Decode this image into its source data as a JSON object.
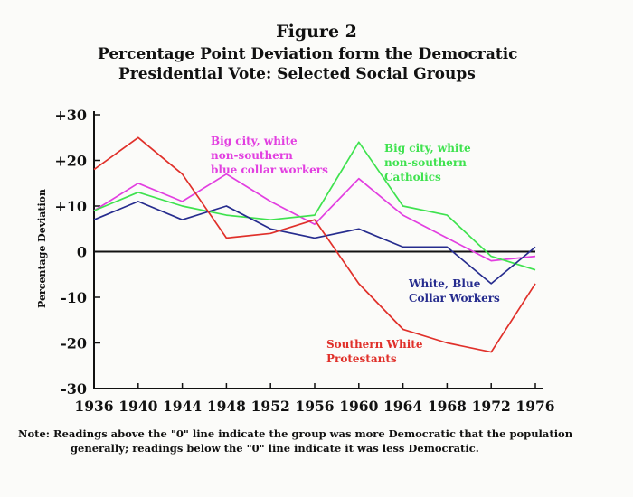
{
  "figure_label": "Figure 2",
  "title_line1": "Percentage Point Deviation form the Democratic",
  "title_line2": "Presidential Vote:  Selected Social Groups",
  "note_line1": "Note: Readings above the \"0\" line indicate the group was more Democratic that the population",
  "note_line2": "generally;  readings below the \"0\" line indicate it was less Democratic.",
  "chart_data": {
    "type": "line",
    "title": "Percentage Point Deviation form the Democratic Presidential Vote:  Selected Social Groups",
    "xlabel": "",
    "ylabel": "Percentage Deviation",
    "x": [
      1936,
      1940,
      1944,
      1948,
      1952,
      1956,
      1960,
      1964,
      1968,
      1972,
      1976
    ],
    "x_tick_labels": [
      "1936",
      "1940",
      "1944",
      "1948",
      "1952",
      "1956",
      "1960",
      "1964",
      "1968",
      "1972",
      "1976"
    ],
    "y_ticks": [
      30,
      20,
      10,
      0,
      -10,
      -20,
      -30
    ],
    "y_tick_labels": [
      "+30",
      "+20",
      "+10",
      "0",
      "-10",
      "-20",
      "-30"
    ],
    "ylim": [
      -30,
      30
    ],
    "grid": false,
    "legend": "inline labels",
    "series": [
      {
        "name": "Big city, white non-southern blue collar workers",
        "label_lines": [
          "Big city, white",
          "non-southern",
          "blue collar workers"
        ],
        "color": "#e23fe0",
        "values": [
          9,
          15,
          11,
          17,
          11,
          6,
          16,
          8,
          3,
          -2,
          -1
        ]
      },
      {
        "name": "Big city, white non-southern Catholics",
        "label_lines": [
          "Big city, white",
          "non-southern",
          "Catholics"
        ],
        "color": "#3fe24f",
        "values": [
          9,
          13,
          10,
          8,
          7,
          8,
          24,
          10,
          8,
          -1,
          -4
        ]
      },
      {
        "name": "White, Blue Collar Workers",
        "label_lines": [
          "White, Blue",
          "Collar Workers"
        ],
        "color": "#262c8e",
        "values": [
          7,
          11,
          7,
          10,
          5,
          3,
          5,
          1,
          1,
          -7,
          1
        ]
      },
      {
        "name": "Southern White Protestants",
        "label_lines": [
          "Southern White",
          "Protestants"
        ],
        "color": "#e0302a",
        "values": [
          18,
          25,
          17,
          3,
          4,
          7,
          -7,
          -17,
          -20,
          -22,
          -7
        ]
      }
    ]
  }
}
